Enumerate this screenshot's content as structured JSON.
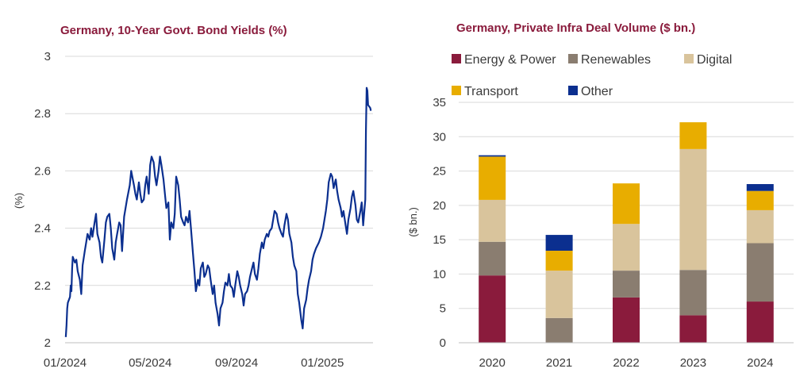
{
  "chart_data": [
    {
      "type": "line",
      "title": "Germany, 10-Year Govt. Bond Yields (%)",
      "ylabel": "(%)",
      "xlabel": "",
      "ylim": [
        2,
        3
      ],
      "yticks": [
        "2",
        "2.2",
        "2.4",
        "2.6",
        "2.8",
        "3"
      ],
      "xticks": [
        "01/2024",
        "05/2024",
        "09/2024",
        "01/2025"
      ],
      "grid": true,
      "line_color": "#0b2f8f",
      "title_color": "#8a1b3c",
      "series": [
        {
          "x": [
            "2024-01-02",
            "2024-01-03",
            "2024-01-04",
            "2024-01-05",
            "2024-01-08",
            "2024-01-09",
            "2024-01-10",
            "2024-01-11",
            "2024-01-12",
            "2024-01-15",
            "2024-01-17",
            "2024-01-19",
            "2024-01-22",
            "2024-01-24",
            "2024-01-26",
            "2024-01-29",
            "2024-01-31",
            "2024-02-02",
            "2024-02-05",
            "2024-02-07",
            "2024-02-09",
            "2024-02-12",
            "2024-02-14",
            "2024-02-16",
            "2024-02-19",
            "2024-02-21",
            "2024-02-23",
            "2024-02-26",
            "2024-02-28",
            "2024-03-01",
            "2024-03-04",
            "2024-03-06",
            "2024-03-08",
            "2024-03-11",
            "2024-03-13",
            "2024-03-15",
            "2024-03-18",
            "2024-03-20",
            "2024-03-22",
            "2024-03-25",
            "2024-03-27",
            "2024-03-29",
            "2024-04-02",
            "2024-04-04",
            "2024-04-08",
            "2024-04-10",
            "2024-04-12",
            "2024-04-15",
            "2024-04-17",
            "2024-04-19",
            "2024-04-22",
            "2024-04-24",
            "2024-04-26",
            "2024-04-29",
            "2024-05-01",
            "2024-05-03",
            "2024-05-06",
            "2024-05-08",
            "2024-05-10",
            "2024-05-13",
            "2024-05-15",
            "2024-05-17",
            "2024-05-20",
            "2024-05-22",
            "2024-05-24",
            "2024-05-27",
            "2024-05-29",
            "2024-05-31",
            "2024-06-03",
            "2024-06-05",
            "2024-06-07",
            "2024-06-10",
            "2024-06-12",
            "2024-06-14",
            "2024-06-17",
            "2024-06-19",
            "2024-06-21",
            "2024-06-24",
            "2024-06-26",
            "2024-06-28",
            "2024-07-01",
            "2024-07-03",
            "2024-07-05",
            "2024-07-08",
            "2024-07-10",
            "2024-07-12",
            "2024-07-15",
            "2024-07-17",
            "2024-07-19",
            "2024-07-22",
            "2024-07-24",
            "2024-07-26",
            "2024-07-29",
            "2024-07-31",
            "2024-08-02",
            "2024-08-05",
            "2024-08-07",
            "2024-08-09",
            "2024-08-12",
            "2024-08-14",
            "2024-08-16",
            "2024-08-19",
            "2024-08-21",
            "2024-08-23",
            "2024-08-26",
            "2024-08-28",
            "2024-08-30",
            "2024-09-02",
            "2024-09-04",
            "2024-09-06",
            "2024-09-09",
            "2024-09-11",
            "2024-09-13",
            "2024-09-16",
            "2024-09-18",
            "2024-09-20",
            "2024-09-23",
            "2024-09-25",
            "2024-09-27",
            "2024-09-30",
            "2024-10-02",
            "2024-10-04",
            "2024-10-07",
            "2024-10-09",
            "2024-10-11",
            "2024-10-14",
            "2024-10-16",
            "2024-10-18",
            "2024-10-21",
            "2024-10-23",
            "2024-10-25",
            "2024-10-28",
            "2024-10-30",
            "2024-11-01",
            "2024-11-04",
            "2024-11-06",
            "2024-11-08",
            "2024-11-11",
            "2024-11-13",
            "2024-11-15",
            "2024-11-18",
            "2024-11-20",
            "2024-11-22",
            "2024-11-25",
            "2024-11-27",
            "2024-11-29",
            "2024-12-02",
            "2024-12-04",
            "2024-12-06",
            "2024-12-09",
            "2024-12-11",
            "2024-12-13",
            "2024-12-16",
            "2024-12-18",
            "2024-12-20",
            "2024-12-23",
            "2024-12-27",
            "2024-12-30",
            "2025-01-02",
            "2025-01-06",
            "2025-01-08",
            "2025-01-10",
            "2025-01-13",
            "2025-01-15",
            "2025-01-17",
            "2025-01-20",
            "2025-01-22",
            "2025-01-24",
            "2025-01-27",
            "2025-01-29",
            "2025-01-31",
            "2025-02-03",
            "2025-02-05",
            "2025-02-07",
            "2025-02-10",
            "2025-02-12",
            "2025-02-14",
            "2025-02-17",
            "2025-02-19",
            "2025-02-21",
            "2025-02-24",
            "2025-02-26",
            "2025-02-28",
            "2025-03-03",
            "2025-03-04",
            "2025-03-05",
            "2025-03-06",
            "2025-03-07",
            "2025-03-10",
            "2025-03-11"
          ],
          "values": [
            2.02,
            2.06,
            2.12,
            2.14,
            2.16,
            2.2,
            2.18,
            2.26,
            2.3,
            2.28,
            2.29,
            2.25,
            2.22,
            2.17,
            2.27,
            2.32,
            2.35,
            2.38,
            2.36,
            2.4,
            2.37,
            2.42,
            2.45,
            2.38,
            2.35,
            2.3,
            2.28,
            2.36,
            2.42,
            2.44,
            2.45,
            2.4,
            2.33,
            2.29,
            2.35,
            2.38,
            2.42,
            2.41,
            2.32,
            2.44,
            2.47,
            2.5,
            2.55,
            2.6,
            2.55,
            2.52,
            2.5,
            2.56,
            2.52,
            2.49,
            2.5,
            2.55,
            2.58,
            2.52,
            2.62,
            2.65,
            2.63,
            2.58,
            2.55,
            2.6,
            2.65,
            2.62,
            2.57,
            2.52,
            2.47,
            2.49,
            2.36,
            2.42,
            2.4,
            2.45,
            2.58,
            2.55,
            2.5,
            2.44,
            2.42,
            2.41,
            2.44,
            2.42,
            2.46,
            2.4,
            2.31,
            2.25,
            2.18,
            2.22,
            2.2,
            2.26,
            2.28,
            2.23,
            2.24,
            2.27,
            2.26,
            2.22,
            2.17,
            2.2,
            2.14,
            2.1,
            2.06,
            2.12,
            2.14,
            2.18,
            2.21,
            2.2,
            2.24,
            2.2,
            2.19,
            2.16,
            2.2,
            2.25,
            2.23,
            2.2,
            2.17,
            2.13,
            2.17,
            2.18,
            2.2,
            2.23,
            2.26,
            2.28,
            2.24,
            2.22,
            2.26,
            2.31,
            2.35,
            2.33,
            2.36,
            2.38,
            2.37,
            2.39,
            2.4,
            2.43,
            2.46,
            2.45,
            2.42,
            2.4,
            2.38,
            2.37,
            2.41,
            2.45,
            2.43,
            2.38,
            2.35,
            2.3,
            2.27,
            2.25,
            2.17,
            2.14,
            2.08,
            2.05,
            2.12,
            2.15,
            2.19,
            2.22,
            2.25,
            2.29,
            2.31,
            2.33,
            2.35,
            2.37,
            2.4,
            2.46,
            2.5,
            2.56,
            2.59,
            2.58,
            2.54,
            2.57,
            2.53,
            2.5,
            2.47,
            2.44,
            2.46,
            2.41,
            2.38,
            2.43,
            2.47,
            2.51,
            2.53,
            2.48,
            2.43,
            2.42,
            2.46,
            2.49,
            2.41,
            2.5,
            2.74,
            2.89,
            2.88,
            2.83,
            2.82,
            2.81
          ]
        }
      ]
    },
    {
      "type": "bar",
      "stacked": true,
      "title": "Germany, Private Infra Deal Volume ($ bn.)",
      "ylabel": "($ bn.)",
      "xlabel": "",
      "ylim": [
        0,
        35
      ],
      "yticks": [
        "0",
        "5",
        "10",
        "15",
        "20",
        "25",
        "30",
        "35"
      ],
      "categories": [
        "2020",
        "2021",
        "2022",
        "2023",
        "2024"
      ],
      "grid": true,
      "legend_position": "top",
      "title_color": "#8a1b3c",
      "series": [
        {
          "name": "Energy & Power",
          "color": "#8a1b3c",
          "values": [
            9.8,
            0,
            6.6,
            4.0,
            6.0
          ]
        },
        {
          "name": "Renewables",
          "color": "#8a7d70",
          "values": [
            4.9,
            3.6,
            3.9,
            6.6,
            8.5
          ]
        },
        {
          "name": "Digital",
          "color": "#d9c49c",
          "values": [
            6.1,
            6.9,
            6.8,
            17.6,
            4.8
          ]
        },
        {
          "name": "Transport",
          "color": "#e8ad00",
          "values": [
            6.3,
            2.9,
            5.9,
            3.9,
            2.8
          ]
        },
        {
          "name": "Other",
          "color": "#0b2f8f",
          "values": [
            0.2,
            2.3,
            0,
            0,
            1.0
          ]
        }
      ]
    }
  ]
}
